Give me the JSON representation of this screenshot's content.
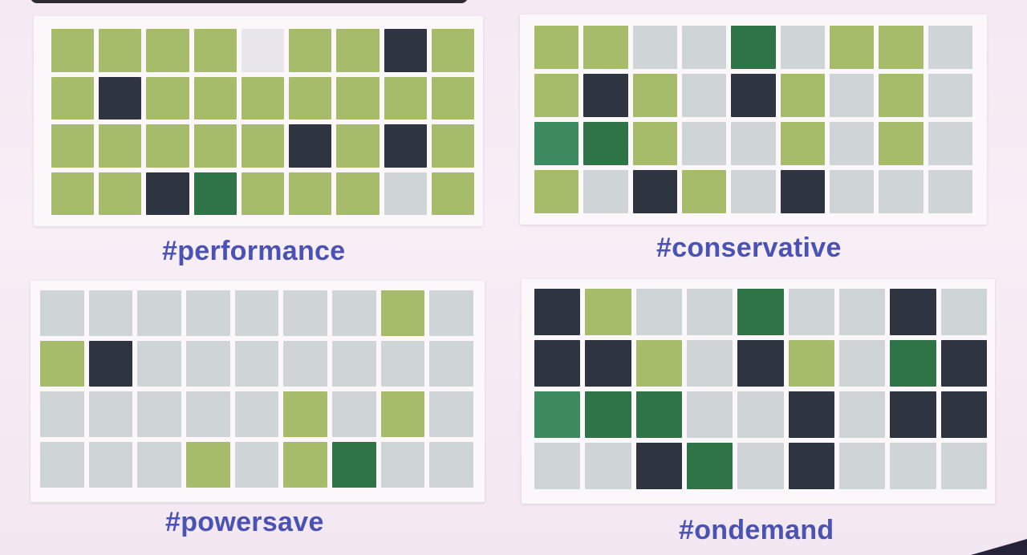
{
  "colors": {
    "o": "#a6bc6a",
    "g": "#cfd5d6",
    "k": "#2e3440",
    "d": "#2f7447",
    "m": "#3c8a5d",
    "w": "#e9e6ea",
    "label": "#4a52b4"
  },
  "panels": [
    {
      "label": "#performance",
      "rows": [
        [
          "o",
          "o",
          "o",
          "o",
          "w",
          "o",
          "o",
          "k",
          "o"
        ],
        [
          "o",
          "k",
          "o",
          "o",
          "o",
          "o",
          "o",
          "o",
          "o"
        ],
        [
          "o",
          "o",
          "o",
          "o",
          "o",
          "k",
          "o",
          "k",
          "o"
        ],
        [
          "o",
          "o",
          "k",
          "d",
          "o",
          "o",
          "o",
          "g",
          "o"
        ]
      ]
    },
    {
      "label": "#conservative",
      "rows": [
        [
          "o",
          "o",
          "g",
          "g",
          "d",
          "g",
          "o",
          "o",
          "g"
        ],
        [
          "o",
          "k",
          "o",
          "g",
          "k",
          "o",
          "g",
          "o",
          "g"
        ],
        [
          "m",
          "d",
          "o",
          "g",
          "g",
          "o",
          "g",
          "o",
          "g"
        ],
        [
          "o",
          "g",
          "k",
          "o",
          "g",
          "k",
          "g",
          "g",
          "g"
        ]
      ]
    },
    {
      "label": "#powersave",
      "rows": [
        [
          "g",
          "g",
          "g",
          "g",
          "g",
          "g",
          "g",
          "o",
          "g"
        ],
        [
          "o",
          "k",
          "g",
          "g",
          "g",
          "g",
          "g",
          "g",
          "g"
        ],
        [
          "g",
          "g",
          "g",
          "g",
          "g",
          "o",
          "g",
          "o",
          "g"
        ],
        [
          "g",
          "g",
          "g",
          "o",
          "g",
          "o",
          "d",
          "g",
          "g"
        ]
      ]
    },
    {
      "label": "#ondemand",
      "rows": [
        [
          "k",
          "o",
          "g",
          "g",
          "d",
          "g",
          "g",
          "k",
          "g"
        ],
        [
          "k",
          "k",
          "o",
          "g",
          "k",
          "o",
          "g",
          "d",
          "k"
        ],
        [
          "m",
          "d",
          "d",
          "g",
          "g",
          "k",
          "g",
          "k",
          "k"
        ],
        [
          "g",
          "g",
          "k",
          "d",
          "g",
          "k",
          "g",
          "g",
          "g"
        ]
      ]
    }
  ]
}
